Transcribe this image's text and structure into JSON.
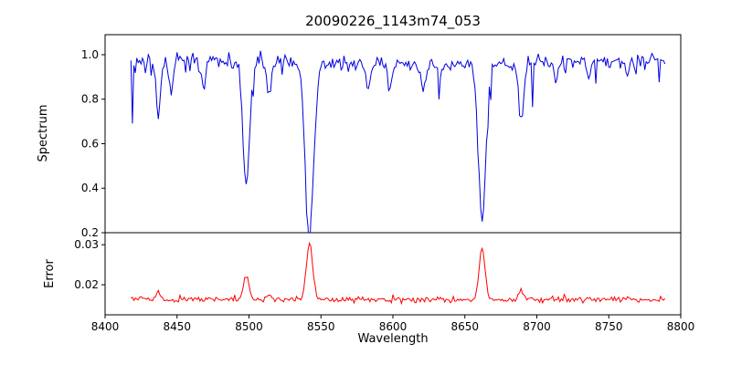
{
  "figure": {
    "background": "#ffffff"
  },
  "chart_data": {
    "type": "line",
    "title": "20090226_1143m74_053",
    "xlabel": "Wavelength",
    "x_lim": [
      8400,
      8800
    ],
    "x_data_range": [
      8418,
      8789
    ],
    "sampling_step": 1.0,
    "noise_seed": 20090226,
    "grid": false,
    "legend": "none",
    "x_ticks": [
      {
        "v": 8400,
        "label": "8400"
      },
      {
        "v": 8450,
        "label": "8450"
      },
      {
        "v": 8500,
        "label": "8500"
      },
      {
        "v": 8550,
        "label": "8550"
      },
      {
        "v": 8600,
        "label": "8600"
      },
      {
        "v": 8650,
        "label": "8650"
      },
      {
        "v": 8700,
        "label": "8700"
      },
      {
        "v": 8750,
        "label": "8750"
      },
      {
        "v": 8800,
        "label": "8800"
      }
    ],
    "panels": [
      {
        "name": "spectrum",
        "ylabel": "Spectrum",
        "line_color": "#0000dd",
        "ylim": [
          0.2,
          1.09
        ],
        "yticks": [
          {
            "v": 0.2,
            "label": "0.2"
          },
          {
            "v": 0.4,
            "label": "0.4"
          },
          {
            "v": 0.6,
            "label": "0.6"
          },
          {
            "v": 0.8,
            "label": "0.8"
          },
          {
            "v": 1.0,
            "label": "1.0"
          }
        ],
        "continuum": 0.965,
        "noise_sigma": 0.015,
        "absorption_lines": [
          {
            "center": 8437,
            "depth": 0.24,
            "width": 1.6
          },
          {
            "center": 8446,
            "depth": 0.12,
            "width": 1.4
          },
          {
            "center": 8468,
            "depth": 0.1,
            "width": 1.4
          },
          {
            "center": 8498,
            "depth": 0.57,
            "width": 2.2
          },
          {
            "center": 8514,
            "depth": 0.16,
            "width": 1.5
          },
          {
            "center": 8542,
            "depth": 0.75,
            "width": 3.0
          },
          {
            "center": 8583,
            "depth": 0.11,
            "width": 1.5
          },
          {
            "center": 8598,
            "depth": 0.1,
            "width": 1.4
          },
          {
            "center": 8621,
            "depth": 0.11,
            "width": 1.5
          },
          {
            "center": 8662,
            "depth": 0.7,
            "width": 2.6
          },
          {
            "center": 8689,
            "depth": 0.26,
            "width": 1.7
          },
          {
            "center": 8713,
            "depth": 0.09,
            "width": 1.4
          },
          {
            "center": 8736,
            "depth": 0.08,
            "width": 1.4
          },
          {
            "center": 8763,
            "depth": 0.07,
            "width": 1.4
          }
        ]
      },
      {
        "name": "error",
        "ylabel": "Error",
        "line_color": "#ff0000",
        "ylim": [
          0.0125,
          0.033
        ],
        "yticks": [
          {
            "v": 0.02,
            "label": "0.02"
          },
          {
            "v": 0.03,
            "label": "0.03"
          }
        ],
        "baseline": 0.0163,
        "noise_sigma": 0.00035,
        "peaks": [
          {
            "center": 8437,
            "height": 0.002,
            "width": 1.5
          },
          {
            "center": 8498,
            "height": 0.0062,
            "width": 1.8
          },
          {
            "center": 8514,
            "height": 0.0012,
            "width": 1.4
          },
          {
            "center": 8542,
            "height": 0.0143,
            "width": 2.2
          },
          {
            "center": 8662,
            "height": 0.0132,
            "width": 2.0
          },
          {
            "center": 8689,
            "height": 0.0028,
            "width": 1.4
          }
        ]
      }
    ]
  }
}
